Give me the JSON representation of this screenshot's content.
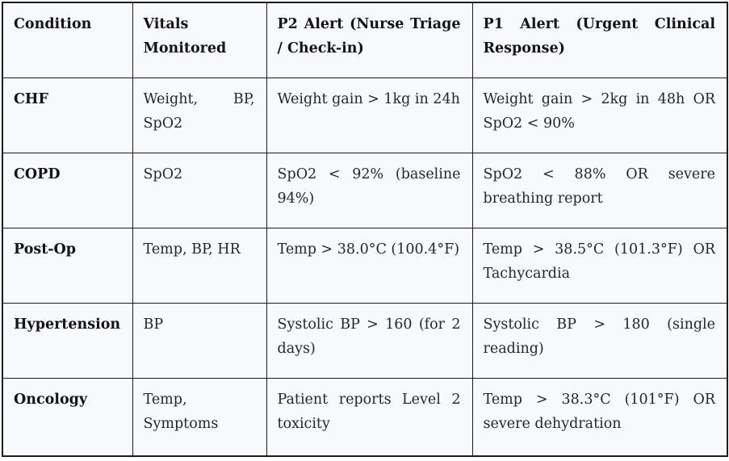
{
  "table": {
    "title_semantic": "remote-patient-monitoring-alert-thresholds",
    "colors": {
      "cell_background": "#f8f9fc",
      "border": "#1c1c1c",
      "header_text": "#141414",
      "body_text": "#262626",
      "page_background": "#ffffff"
    },
    "columns": [
      "Condition",
      "Vitals Monitored",
      "P2 Alert (Nurse Triage / Check-in)",
      "P1 Alert (Urgent Clinical Response)"
    ],
    "rows": [
      {
        "condition": "CHF",
        "vitals": "Weight, BP, SpO2",
        "p2_alert": "Weight gain > 1kg in 24h",
        "p1_alert": "Weight gain > 2kg in 48h OR SpO2 < 90%"
      },
      {
        "condition": "COPD",
        "vitals": "SpO2",
        "p2_alert": "SpO2 < 92% (baseline 94%)",
        "p1_alert": "SpO2 < 88% OR severe breathing report"
      },
      {
        "condition": "Post-Op",
        "vitals": "Temp, BP, HR",
        "p2_alert": "Temp > 38.0°C (100.4°F)",
        "p1_alert": "Temp > 38.5°C (101.3°F) OR Tachycardia"
      },
      {
        "condition": "Hypertension",
        "vitals": "BP",
        "p2_alert": "Systolic BP > 160 (for 2 days)",
        "p1_alert": "Systolic BP > 180 (single reading)"
      },
      {
        "condition": "Oncology",
        "vitals": "Temp, Symptoms",
        "p2_alert": "Patient reports Level 2 toxicity",
        "p1_alert": "Temp > 38.3°C (101°F) OR severe dehydration"
      }
    ]
  }
}
